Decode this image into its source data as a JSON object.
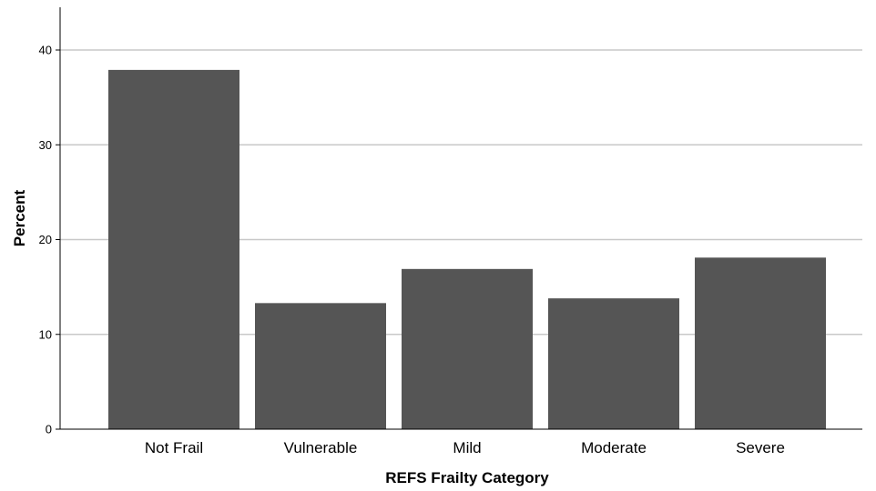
{
  "chart_data": {
    "type": "bar",
    "title": "",
    "xlabel": "REFS Frailty Category",
    "ylabel": "Percent",
    "categories": [
      "Not Frail",
      "Vulnerable",
      "Mild",
      "Moderate",
      "Severe"
    ],
    "values": [
      37.9,
      13.3,
      16.9,
      13.8,
      18.1
    ],
    "ylim": [
      0,
      44
    ],
    "yticks": [
      0,
      10,
      20,
      30,
      40
    ],
    "grid": true,
    "legend": "none",
    "colors": {
      "bar": "#555555",
      "grid": "#c8c8c8",
      "axis": "#000000",
      "background": "#ffffff"
    }
  }
}
